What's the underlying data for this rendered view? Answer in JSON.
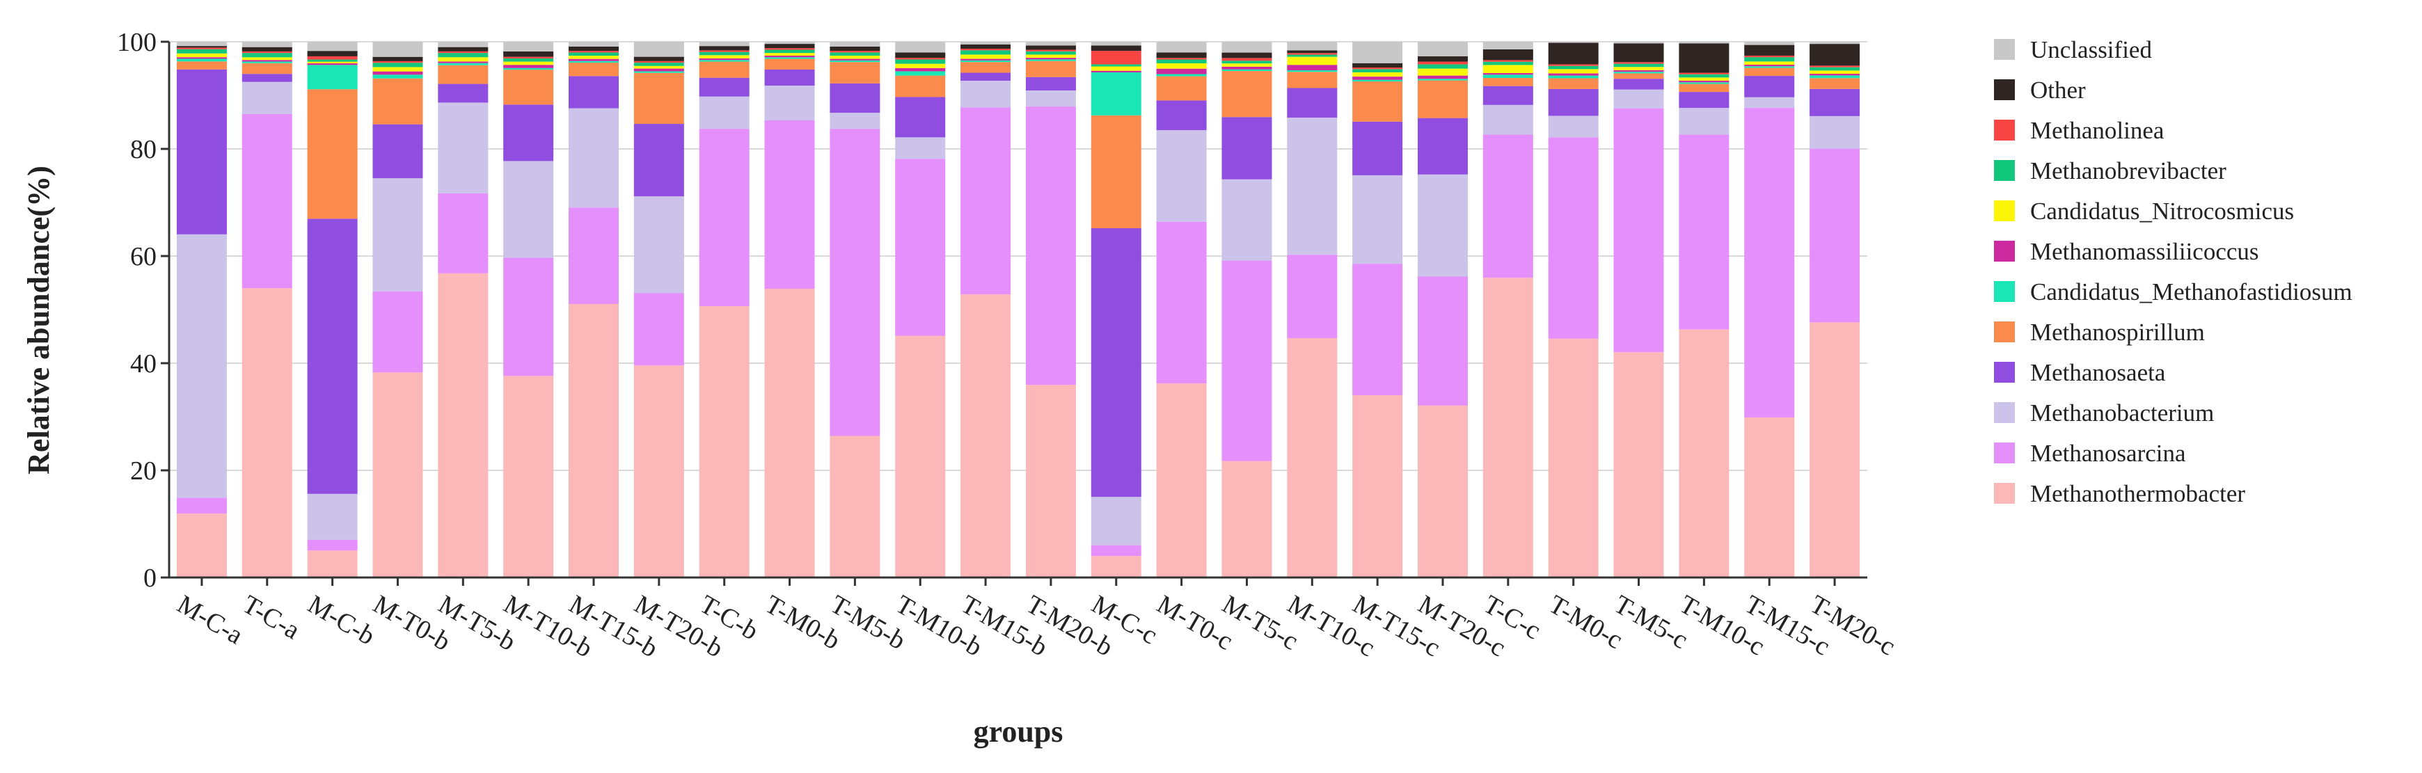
{
  "chart_data": {
    "type": "bar",
    "stacked": true,
    "title": "",
    "xlabel": "groups",
    "ylabel": "Relative abundance(%)",
    "ylim": [
      0,
      100
    ],
    "yticks": [
      0,
      20,
      40,
      60,
      80,
      100
    ],
    "grid": true,
    "legend_position": "right",
    "categories": [
      "M-C-a",
      "T-C-a",
      "M-C-b",
      "M-T0-b",
      "M-T5-b",
      "M-T10-b",
      "M-T15-b",
      "M-T20-b",
      "T-C-b",
      "T-M0-b",
      "T-M5-b",
      "T-M10-b",
      "T-M15-b",
      "T-M20-b",
      "M-C-c",
      "M-T0-c",
      "M-T5-c",
      "M-T10-c",
      "M-T15-c",
      "M-T20-c",
      "T-C-c",
      "T-M0-c",
      "T-M5-c",
      "T-M10-c",
      "T-M15-c",
      "T-M20-c"
    ],
    "series": [
      {
        "name": "Methanothermobacter",
        "color": "#fcb8b8",
        "values": [
          12,
          54,
          5,
          38,
          57,
          37.5,
          51,
          39.5,
          50.5,
          54,
          26.5,
          45,
          53,
          36,
          4,
          36,
          21.5,
          44.5,
          34,
          32,
          55.5,
          44.5,
          42,
          46.5,
          30,
          47
        ]
      },
      {
        "name": "Methanosarcina",
        "color": "#e58ffc",
        "values": [
          3,
          32.5,
          2,
          15,
          15,
          22,
          18,
          13.5,
          33,
          31.5,
          57.5,
          33,
          35,
          52,
          2,
          30,
          37,
          15.5,
          24.5,
          24,
          26.5,
          37.5,
          45.5,
          36.5,
          58,
          32
        ]
      },
      {
        "name": "Methanobacterium",
        "color": "#cbc3ea",
        "values": [
          49.5,
          6,
          8.5,
          21,
          17,
          18,
          18.5,
          18,
          6,
          6.5,
          3,
          4,
          5,
          3,
          9,
          17,
          15,
          25.5,
          16.5,
          19,
          5.5,
          4,
          3.5,
          5,
          2,
          6
        ]
      },
      {
        "name": "Methanosaeta",
        "color": "#8f4ee0",
        "values": [
          31,
          1.5,
          51,
          10,
          3.5,
          10.5,
          6,
          13.5,
          3.5,
          3,
          5.5,
          7.5,
          1.5,
          2.5,
          50,
          5.5,
          11.5,
          5.5,
          10,
          10.5,
          3.5,
          5,
          2,
          3,
          4,
          5
        ]
      },
      {
        "name": "Methanospirillum",
        "color": "#fb8a4d",
        "values": [
          1.5,
          2,
          24,
          8.5,
          3.5,
          6.5,
          2.5,
          9.5,
          3,
          2,
          4,
          4,
          2,
          3,
          21,
          4.5,
          8.5,
          3,
          7.5,
          7,
          1.5,
          2,
          1,
          1.5,
          1.5,
          2
        ]
      },
      {
        "name": "Candidatus_Methanofastidiosum",
        "color": "#19e5b5",
        "values": [
          0.5,
          0.3,
          4.5,
          0.7,
          0.4,
          0.3,
          0.3,
          0.3,
          0.3,
          0.3,
          0.3,
          0.8,
          0.3,
          0.3,
          8,
          0.4,
          0.3,
          0.3,
          0.3,
          0.3,
          0.6,
          0.5,
          0.3,
          0.3,
          0.3,
          0.5
        ]
      },
      {
        "name": "Methanomassiliicoccus",
        "color": "#ce2aa0",
        "values": [
          0.3,
          0.3,
          0.3,
          0.6,
          0.3,
          0.6,
          0.4,
          0.5,
          0.3,
          0.3,
          0.3,
          0.6,
          0.3,
          0.3,
          0.3,
          1,
          0.5,
          1,
          0.6,
          0.6,
          0.3,
          0.4,
          0.3,
          0.3,
          0.3,
          0.3
        ]
      },
      {
        "name": "Candidatus_Nitrocosmicus",
        "color": "#fbf506",
        "values": [
          0.7,
          0.5,
          0.3,
          0.8,
          0.8,
          0.6,
          0.6,
          0.5,
          0.6,
          0.5,
          0.6,
          0.8,
          0.8,
          0.6,
          0.8,
          1,
          0.6,
          1.5,
          0.8,
          1.3,
          1.5,
          0.8,
          0.6,
          0.6,
          0.6,
          0.6
        ]
      },
      {
        "name": "Methanobrevibacter",
        "color": "#11c77b",
        "values": [
          0.8,
          0.8,
          0.4,
          0.8,
          0.8,
          0.6,
          0.6,
          0.6,
          0.6,
          0.6,
          0.6,
          0.8,
          0.8,
          0.6,
          0.4,
          0.7,
          0.5,
          0.4,
          0.6,
          0.8,
          0.6,
          0.6,
          0.6,
          0.6,
          0.8,
          0.6
        ]
      },
      {
        "name": "Methanolinea",
        "color": "#f94444",
        "values": [
          0.3,
          0.3,
          0.6,
          0.3,
          0.3,
          0.3,
          0.3,
          0.3,
          0.3,
          0.3,
          0.3,
          0.3,
          0.3,
          0.3,
          2.5,
          0.3,
          0.5,
          0.3,
          0.3,
          0.5,
          0.3,
          0.3,
          0.3,
          0.3,
          0.3,
          0.3
        ]
      },
      {
        "name": "Other",
        "color": "#2f2523",
        "values": [
          0.3,
          0.8,
          1,
          0.8,
          0.8,
          1,
          0.8,
          0.8,
          0.8,
          0.8,
          0.8,
          1,
          0.8,
          0.8,
          1,
          1,
          1,
          0.5,
          0.8,
          1,
          2,
          4,
          3.5,
          5.5,
          2,
          4
        ]
      },
      {
        "name": "Unclassified",
        "color": "#c8c8c8",
        "values": [
          0.8,
          1,
          1.7,
          2.8,
          1,
          1.8,
          0.9,
          2.8,
          0.8,
          0.4,
          0.9,
          2,
          0.5,
          0.7,
          0.7,
          2,
          2,
          1.6,
          4,
          2.7,
          1.4,
          0.2,
          0.3,
          0.3,
          0.6,
          0.4
        ]
      }
    ]
  }
}
